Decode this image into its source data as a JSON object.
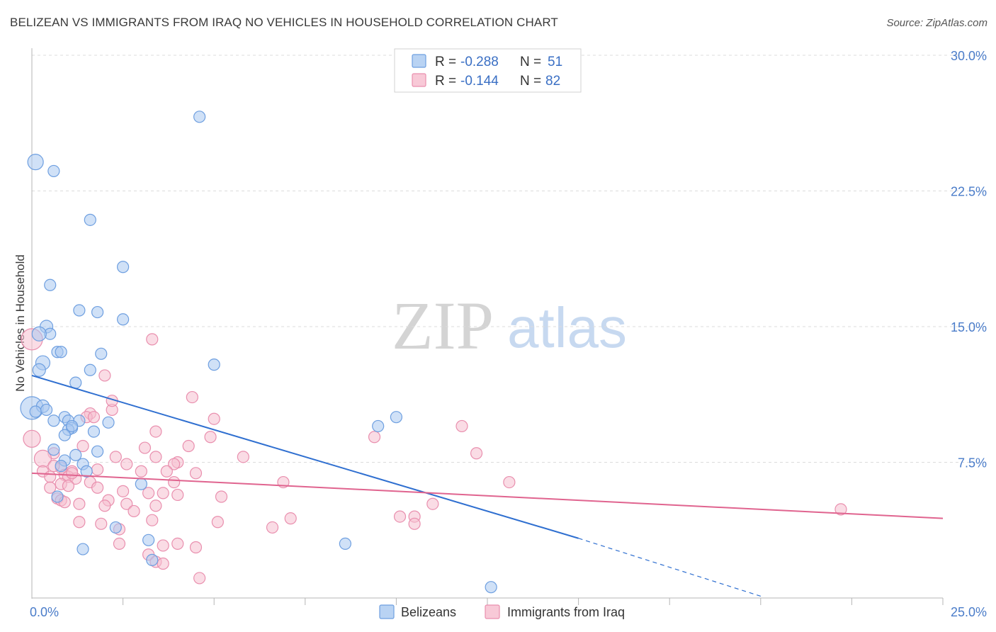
{
  "title": "BELIZEAN VS IMMIGRANTS FROM IRAQ NO VEHICLES IN HOUSEHOLD CORRELATION CHART",
  "source": "Source: ZipAtlas.com",
  "watermark": {
    "zip": "ZIP",
    "atlas": "atlas"
  },
  "colors": {
    "blue_fill": "#a9c8f0",
    "blue_stroke": "#6e9fe0",
    "blue_line": "#2f6fd0",
    "pink_fill": "#f6bfd0",
    "pink_stroke": "#e98fae",
    "pink_line": "#e0648f",
    "grid": "#dcdcdc",
    "axis": "#999999"
  },
  "legend": {
    "row1": {
      "r_label": "R =",
      "r_value": "-0.288",
      "n_label": "N =",
      "n_value": "51"
    },
    "row2": {
      "r_label": "R =",
      "r_value": "-0.144",
      "n_label": "N =",
      "n_value": "82"
    }
  },
  "chart_data": {
    "type": "scatter",
    "title": "BELIZEAN VS IMMIGRANTS FROM IRAQ NO VEHICLES IN HOUSEHOLD CORRELATION CHART",
    "xlabel": "",
    "ylabel": "No Vehicles in Household",
    "xlim": [
      0,
      25
    ],
    "ylim": [
      0,
      30
    ],
    "x_tick_labels": [
      "0.0%",
      "25.0%"
    ],
    "y_tick_values": [
      7.5,
      15.0,
      22.5,
      30.0
    ],
    "y_tick_labels": [
      "7.5%",
      "15.0%",
      "22.5%",
      "30.0%"
    ],
    "grid": true,
    "legend_position": "top-center",
    "series": [
      {
        "name": "Belizeans",
        "r": -0.288,
        "n": 51,
        "trend": {
          "x0": 0,
          "y0": 12.3,
          "x1": 15,
          "y1": 3.3,
          "dash_to_x": 20,
          "dash_to_y": 0.1
        },
        "points": [
          [
            0.0,
            10.5,
            16
          ],
          [
            0.1,
            24.1,
            11
          ],
          [
            0.6,
            23.6,
            8
          ],
          [
            4.6,
            26.6,
            8
          ],
          [
            1.6,
            20.9,
            8
          ],
          [
            2.5,
            18.3,
            8
          ],
          [
            0.5,
            17.3,
            8
          ],
          [
            1.3,
            15.9,
            8
          ],
          [
            1.8,
            15.8,
            8
          ],
          [
            2.5,
            15.4,
            8
          ],
          [
            0.4,
            15.0,
            9
          ],
          [
            0.5,
            14.6,
            8
          ],
          [
            0.2,
            14.6,
            10
          ],
          [
            0.7,
            13.6,
            8
          ],
          [
            0.8,
            13.6,
            8
          ],
          [
            1.9,
            13.5,
            8
          ],
          [
            0.3,
            13.0,
            10
          ],
          [
            0.2,
            12.6,
            9
          ],
          [
            1.6,
            12.6,
            8
          ],
          [
            5.0,
            12.9,
            8
          ],
          [
            1.2,
            11.9,
            8
          ],
          [
            0.3,
            10.6,
            9
          ],
          [
            0.4,
            10.4,
            8
          ],
          [
            0.9,
            10.0,
            8
          ],
          [
            1.0,
            9.8,
            8
          ],
          [
            1.3,
            9.8,
            8
          ],
          [
            0.6,
            9.8,
            8
          ],
          [
            2.1,
            9.7,
            8
          ],
          [
            1.1,
            9.4,
            8
          ],
          [
            1.0,
            9.3,
            8
          ],
          [
            1.7,
            9.2,
            8
          ],
          [
            0.9,
            9.0,
            8
          ],
          [
            9.5,
            9.5,
            8
          ],
          [
            10.0,
            10.0,
            8
          ],
          [
            0.6,
            8.2,
            8
          ],
          [
            1.8,
            8.1,
            8
          ],
          [
            1.2,
            7.9,
            8
          ],
          [
            0.9,
            7.6,
            8
          ],
          [
            1.4,
            7.4,
            8
          ],
          [
            0.8,
            7.3,
            8
          ],
          [
            1.5,
            7.0,
            8
          ],
          [
            3.0,
            6.3,
            8
          ],
          [
            0.7,
            5.6,
            8
          ],
          [
            2.3,
            3.9,
            8
          ],
          [
            1.4,
            2.7,
            8
          ],
          [
            3.2,
            3.2,
            8
          ],
          [
            3.3,
            2.1,
            8
          ],
          [
            8.6,
            3.0,
            8
          ],
          [
            12.6,
            0.6,
            8
          ],
          [
            0.1,
            10.3,
            8
          ],
          [
            1.1,
            9.5,
            8
          ]
        ]
      },
      {
        "name": "Immigrants from Iraq",
        "r": -0.144,
        "n": 82,
        "trend": {
          "x0": 0,
          "y0": 6.9,
          "x1": 25,
          "y1": 4.4
        },
        "points": [
          [
            0.0,
            14.3,
            15
          ],
          [
            0.0,
            8.8,
            12
          ],
          [
            3.3,
            14.3,
            8
          ],
          [
            2.0,
            12.3,
            8
          ],
          [
            4.4,
            11.1,
            8
          ],
          [
            2.2,
            10.4,
            8
          ],
          [
            1.6,
            10.2,
            8
          ],
          [
            1.5,
            10.0,
            8
          ],
          [
            2.2,
            10.9,
            8
          ],
          [
            5.0,
            9.9,
            8
          ],
          [
            3.4,
            9.2,
            8
          ],
          [
            4.9,
            8.9,
            8
          ],
          [
            1.4,
            8.4,
            8
          ],
          [
            3.1,
            8.3,
            8
          ],
          [
            4.3,
            8.4,
            8
          ],
          [
            0.6,
            8.0,
            8
          ],
          [
            5.8,
            7.8,
            8
          ],
          [
            0.3,
            7.7,
            12
          ],
          [
            2.3,
            7.8,
            8
          ],
          [
            3.4,
            7.8,
            8
          ],
          [
            4.0,
            7.5,
            8
          ],
          [
            3.9,
            7.4,
            8
          ],
          [
            2.6,
            7.4,
            8
          ],
          [
            0.8,
            7.2,
            8
          ],
          [
            1.8,
            7.1,
            8
          ],
          [
            0.3,
            7.0,
            8
          ],
          [
            1.1,
            7.0,
            8
          ],
          [
            3.0,
            7.0,
            8
          ],
          [
            3.7,
            7.0,
            8
          ],
          [
            4.5,
            6.9,
            8
          ],
          [
            0.9,
            6.8,
            8
          ],
          [
            1.0,
            6.7,
            8
          ],
          [
            0.5,
            6.7,
            8
          ],
          [
            1.2,
            6.6,
            8
          ],
          [
            1.6,
            6.4,
            8
          ],
          [
            3.9,
            6.4,
            8
          ],
          [
            0.8,
            6.3,
            8
          ],
          [
            1.0,
            6.2,
            8
          ],
          [
            0.5,
            6.1,
            8
          ],
          [
            1.8,
            6.1,
            8
          ],
          [
            2.5,
            5.9,
            8
          ],
          [
            3.2,
            5.8,
            8
          ],
          [
            3.6,
            5.8,
            8
          ],
          [
            4.0,
            5.7,
            8
          ],
          [
            5.2,
            5.6,
            8
          ],
          [
            0.7,
            5.5,
            8
          ],
          [
            0.8,
            5.4,
            8
          ],
          [
            2.1,
            5.4,
            8
          ],
          [
            2.6,
            5.2,
            8
          ],
          [
            1.3,
            5.2,
            8
          ],
          [
            2.0,
            5.1,
            8
          ],
          [
            2.8,
            4.8,
            8
          ],
          [
            3.4,
            5.1,
            8
          ],
          [
            0.9,
            5.3,
            8
          ],
          [
            1.3,
            4.2,
            8
          ],
          [
            1.9,
            4.1,
            8
          ],
          [
            2.4,
            3.8,
            8
          ],
          [
            3.3,
            4.3,
            8
          ],
          [
            5.1,
            4.2,
            8
          ],
          [
            6.6,
            3.9,
            8
          ],
          [
            7.1,
            4.4,
            8
          ],
          [
            2.4,
            3.0,
            8
          ],
          [
            3.6,
            2.9,
            8
          ],
          [
            4.0,
            3.0,
            8
          ],
          [
            4.5,
            2.8,
            8
          ],
          [
            3.2,
            2.4,
            8
          ],
          [
            3.4,
            2.0,
            8
          ],
          [
            3.6,
            1.9,
            8
          ],
          [
            4.6,
            1.1,
            8
          ],
          [
            6.9,
            6.4,
            8
          ],
          [
            9.4,
            8.9,
            8
          ],
          [
            11.8,
            9.5,
            8
          ],
          [
            12.2,
            8.0,
            8
          ],
          [
            13.1,
            6.4,
            8
          ],
          [
            11.0,
            5.2,
            8
          ],
          [
            10.1,
            4.5,
            8
          ],
          [
            10.5,
            4.5,
            8
          ],
          [
            10.5,
            4.1,
            8
          ],
          [
            22.2,
            4.9,
            8
          ],
          [
            1.7,
            10.0,
            8
          ],
          [
            0.6,
            7.3,
            8
          ],
          [
            1.1,
            6.9,
            8
          ]
        ]
      }
    ]
  },
  "bottom_legend": {
    "blue_label": "Belizeans",
    "pink_label": "Immigrants from Iraq"
  }
}
